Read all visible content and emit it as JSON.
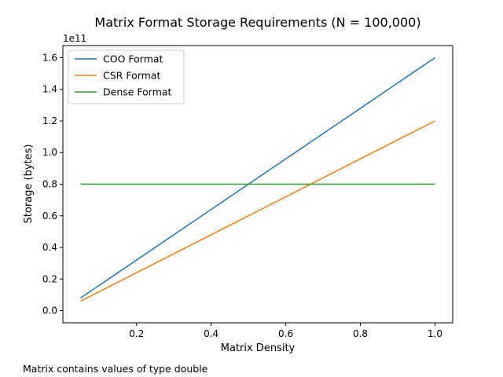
{
  "chart_data": {
    "type": "line",
    "title": "Matrix Format Storage Requirements (N = 100,000)",
    "xlabel": "Matrix Density",
    "ylabel": "Storage (bytes)",
    "y_offset_label": "1e11",
    "xlim": [
      0.0025,
      1.0475
    ],
    "ylim": [
      -0.077,
      1.677
    ],
    "x_ticks": [
      0.2,
      0.4,
      0.6,
      0.8,
      1.0
    ],
    "x_tick_labels": [
      "0.2",
      "0.4",
      "0.6",
      "0.8",
      "1.0"
    ],
    "y_ticks": [
      0.0,
      0.2,
      0.4,
      0.6,
      0.8,
      1.0,
      1.2,
      1.4,
      1.6
    ],
    "y_tick_labels": [
      "0.0",
      "0.2",
      "0.4",
      "0.6",
      "0.8",
      "1.0",
      "1.2",
      "1.4",
      "1.6"
    ],
    "grid": false,
    "legend_position": "top-left",
    "series": [
      {
        "name": "COO Format",
        "color": "#1f77b4",
        "x": [
          0.05,
          1.0
        ],
        "y": [
          0.08,
          1.6
        ]
      },
      {
        "name": "CSR Format",
        "color": "#ff7f0e",
        "x": [
          0.05,
          1.0
        ],
        "y": [
          0.06,
          1.2
        ]
      },
      {
        "name": "Dense Format",
        "color": "#2ca02c",
        "x": [
          0.05,
          1.0
        ],
        "y": [
          0.8,
          0.8
        ]
      }
    ]
  },
  "footnote": "Matrix contains values of type double"
}
